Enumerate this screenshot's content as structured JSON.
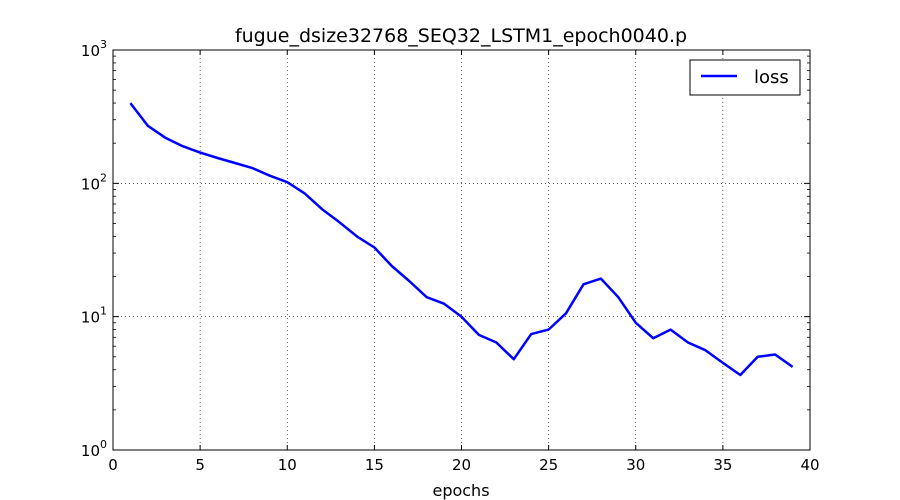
{
  "chart_data": {
    "type": "line",
    "title": "fugue_dsize32768_SEQ32_LSTM1_epoch0040.p",
    "xlabel": "epochs",
    "ylabel": "",
    "xlim": [
      0,
      40
    ],
    "ylim": [
      1,
      1000
    ],
    "yscale": "log",
    "grid": true,
    "legend_position": "top-right",
    "x_ticks": [
      "0",
      "5",
      "10",
      "15",
      "20",
      "25",
      "30",
      "35",
      "40"
    ],
    "y_ticks": [
      {
        "base": "10",
        "exp": "0"
      },
      {
        "base": "10",
        "exp": "1"
      },
      {
        "base": "10",
        "exp": "2"
      },
      {
        "base": "10",
        "exp": "3"
      }
    ],
    "series": [
      {
        "name": "loss",
        "color": "#0000ff",
        "x": [
          1,
          2,
          3,
          4,
          5,
          6,
          7,
          8,
          9,
          10,
          11,
          12,
          13,
          14,
          15,
          16,
          17,
          18,
          19,
          20,
          21,
          22,
          23,
          24,
          25,
          26,
          27,
          28,
          29,
          30,
          31,
          32,
          33,
          34,
          35,
          36,
          37,
          38,
          39
        ],
        "y": [
          400,
          270,
          220,
          190,
          170,
          155,
          142,
          130,
          114,
          102,
          84,
          64,
          51,
          40,
          33,
          24,
          18.5,
          14,
          12.5,
          10,
          7.3,
          6.4,
          4.8,
          7.4,
          8,
          10.6,
          17.5,
          19.3,
          14,
          9,
          6.9,
          8,
          6.4,
          5.6,
          4.5,
          3.65,
          5,
          5.2,
          4.2
        ]
      }
    ]
  }
}
